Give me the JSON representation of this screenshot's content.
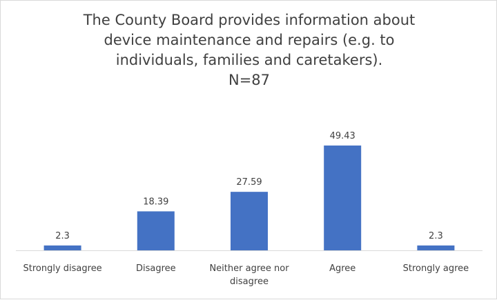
{
  "chart_data": {
    "type": "bar",
    "title_lines": [
      "The County Board provides information about",
      "device maintenance and repairs (e.g. to",
      "individuals, families and caretakers).",
      "N=87"
    ],
    "categories": [
      [
        "Strongly disagree"
      ],
      [
        "Disagree"
      ],
      [
        "Neither agree nor",
        "disagree"
      ],
      [
        "Agree"
      ],
      [
        "Strongly agree"
      ]
    ],
    "values": [
      2.3,
      18.39,
      27.59,
      49.43,
      2.3
    ],
    "value_labels": [
      "2.3",
      "18.39",
      "27.59",
      "49.43",
      "2.3"
    ],
    "bar_color": "#4472c4",
    "axis_color": "#d9d9d9",
    "ylim": [
      0,
      49.43
    ],
    "grid": false,
    "legend": "none"
  }
}
